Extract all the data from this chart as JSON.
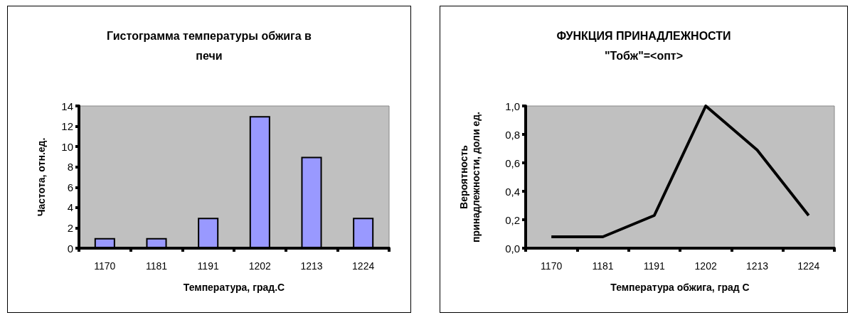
{
  "chart_data": [
    {
      "type": "bar",
      "title": "Гистограмма температуры обжига в печи",
      "xlabel": "Температура, град.С",
      "ylabel": "Частота, отн.ед.",
      "categories": [
        "1170",
        "1181",
        "1191",
        "1202",
        "1213",
        "1224"
      ],
      "values": [
        1,
        1,
        3,
        13,
        9,
        3
      ],
      "color": "#9999ff",
      "ylim": [
        0,
        14
      ],
      "yticks": [
        0,
        2,
        4,
        6,
        8,
        10,
        12,
        14
      ],
      "grid": false
    },
    {
      "type": "line",
      "title": "ФУНКЦИЯ ПРИНАДЛЕЖНОСТИ \"Тобж\"=<опт>",
      "xlabel": "Температура обжига, град С",
      "ylabel": "Вероятность принадлежности, доли ед.",
      "categories": [
        "1170",
        "1181",
        "1191",
        "1202",
        "1213",
        "1224"
      ],
      "values": [
        0.08,
        0.08,
        0.23,
        1.0,
        0.69,
        0.23
      ],
      "color": "#000000",
      "marker": "none",
      "line_style": "solid",
      "ylim": [
        0,
        1
      ],
      "yticks": [
        {
          "value": 0,
          "label": "0,0"
        },
        {
          "value": 0.2,
          "label": "0,2"
        },
        {
          "value": 0.4,
          "label": "0,4"
        },
        {
          "value": 0.6,
          "label": "0,6"
        },
        {
          "value": 0.8,
          "label": "0,8"
        },
        {
          "value": 1,
          "label": "1,0"
        }
      ],
      "grid": false
    }
  ]
}
